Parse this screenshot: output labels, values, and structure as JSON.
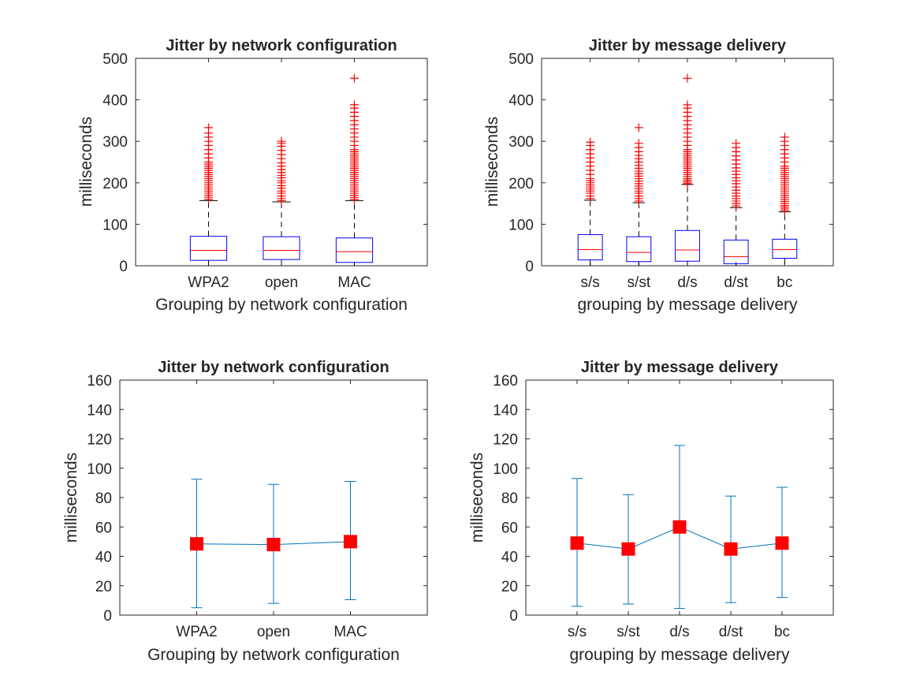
{
  "chart_data": [
    {
      "type": "boxplot",
      "title": "Jitter by network configuration",
      "xlabel": "Grouping by network configuration",
      "ylabel": "milliseconds",
      "ylim": [
        0,
        500
      ],
      "yticks": [
        0,
        100,
        200,
        300,
        400,
        500
      ],
      "categories": [
        "WPA2",
        "open",
        "MAC"
      ],
      "grid": false,
      "colors": {
        "box": "#0000ff",
        "median": "#ff0000",
        "whisker": "#000000",
        "outlier": "#ff0000"
      },
      "boxes": [
        {
          "q1": 13,
          "median": 37,
          "q3": 71,
          "whisker_low": 0,
          "whisker_high": 157,
          "outliers": [
            160,
            165,
            170,
            175,
            180,
            185,
            190,
            195,
            200,
            205,
            210,
            215,
            220,
            225,
            230,
            235,
            240,
            245,
            250,
            260,
            270,
            280,
            290,
            300,
            310,
            320,
            333
          ]
        },
        {
          "q1": 15,
          "median": 37,
          "q3": 70,
          "whisker_low": 0,
          "whisker_high": 154,
          "outliers": [
            157,
            162,
            168,
            175,
            180,
            187,
            193,
            200,
            205,
            212,
            218,
            225,
            232,
            240,
            248,
            258,
            268,
            278,
            288,
            295,
            300
          ]
        },
        {
          "q1": 8,
          "median": 34,
          "q3": 67,
          "whisker_low": 0,
          "whisker_high": 157,
          "outliers": [
            160,
            165,
            170,
            175,
            180,
            185,
            190,
            195,
            200,
            205,
            210,
            215,
            220,
            225,
            230,
            235,
            240,
            245,
            250,
            255,
            260,
            265,
            270,
            275,
            280,
            290,
            300,
            310,
            320,
            330,
            340,
            350,
            360,
            370,
            380,
            388,
            452
          ]
        }
      ]
    },
    {
      "type": "boxplot",
      "title": "Jitter by message delivery",
      "xlabel": "grouping by message delivery",
      "ylabel": "milliseconds",
      "ylim": [
        0,
        500
      ],
      "yticks": [
        0,
        100,
        200,
        300,
        400,
        500
      ],
      "categories": [
        "s/s",
        "s/st",
        "d/s",
        "d/st",
        "bc"
      ],
      "grid": false,
      "colors": {
        "box": "#0000ff",
        "median": "#ff0000",
        "whisker": "#000000",
        "outlier": "#ff0000"
      },
      "boxes": [
        {
          "q1": 14,
          "median": 39,
          "q3": 75,
          "whisker_low": 0,
          "whisker_high": 158,
          "outliers": [
            162,
            168,
            175,
            180,
            185,
            190,
            195,
            200,
            205,
            210,
            220,
            230,
            240,
            250,
            260,
            270,
            280,
            290,
            298
          ]
        },
        {
          "q1": 10,
          "median": 32,
          "q3": 70,
          "whisker_low": 0,
          "whisker_high": 152,
          "outliers": [
            156,
            162,
            168,
            175,
            180,
            186,
            192,
            198,
            204,
            210,
            216,
            222,
            228,
            235,
            242,
            250,
            258,
            266,
            275,
            285,
            295,
            333
          ]
        },
        {
          "q1": 11,
          "median": 38,
          "q3": 85,
          "whisker_low": 0,
          "whisker_high": 196,
          "outliers": [
            198,
            202,
            206,
            210,
            215,
            220,
            225,
            230,
            235,
            240,
            245,
            250,
            255,
            260,
            265,
            270,
            275,
            280,
            290,
            300,
            310,
            320,
            330,
            340,
            350,
            360,
            370,
            380,
            388,
            452
          ]
        },
        {
          "q1": 5,
          "median": 22,
          "q3": 62,
          "whisker_low": 0,
          "whisker_high": 140,
          "outliers": [
            144,
            150,
            156,
            162,
            168,
            175,
            182,
            190,
            198,
            205,
            212,
            220,
            228,
            236,
            245,
            255,
            265,
            275,
            285,
            295
          ]
        },
        {
          "q1": 18,
          "median": 39,
          "q3": 64,
          "whisker_low": 0,
          "whisker_high": 130,
          "outliers": [
            133,
            137,
            141,
            145,
            150,
            155,
            160,
            165,
            170,
            175,
            180,
            185,
            190,
            195,
            200,
            205,
            210,
            215,
            220,
            225,
            230,
            235,
            240,
            250,
            260,
            270,
            280,
            290,
            300,
            310
          ]
        }
      ]
    },
    {
      "type": "errorbar",
      "title": "Jitter by network configuration",
      "xlabel": "Grouping by network configuration",
      "ylabel": "milliseconds",
      "ylim": [
        0,
        160
      ],
      "yticks": [
        0,
        20,
        40,
        60,
        80,
        100,
        120,
        140,
        160
      ],
      "categories": [
        "WPA2",
        "open",
        "MAC"
      ],
      "grid": false,
      "colors": {
        "line": "#0072bd",
        "marker": "#ff0000"
      },
      "series": [
        {
          "mean": [
            48.5,
            48,
            50
          ],
          "lower": [
            5,
            8,
            10.5
          ],
          "upper": [
            92.5,
            89,
            91
          ]
        }
      ]
    },
    {
      "type": "errorbar",
      "title": "Jitter by message delivery",
      "xlabel": "grouping by message delivery",
      "ylabel": "milliseconds",
      "ylim": [
        0,
        160
      ],
      "yticks": [
        0,
        20,
        40,
        60,
        80,
        100,
        120,
        140,
        160
      ],
      "categories": [
        "s/s",
        "s/st",
        "d/s",
        "d/st",
        "bc"
      ],
      "grid": false,
      "colors": {
        "line": "#0072bd",
        "marker": "#ff0000"
      },
      "series": [
        {
          "mean": [
            49,
            45,
            60,
            45,
            49
          ],
          "lower": [
            6,
            7.5,
            4.5,
            8.5,
            12
          ],
          "upper": [
            93,
            82,
            115.5,
            81,
            87
          ]
        }
      ]
    }
  ]
}
